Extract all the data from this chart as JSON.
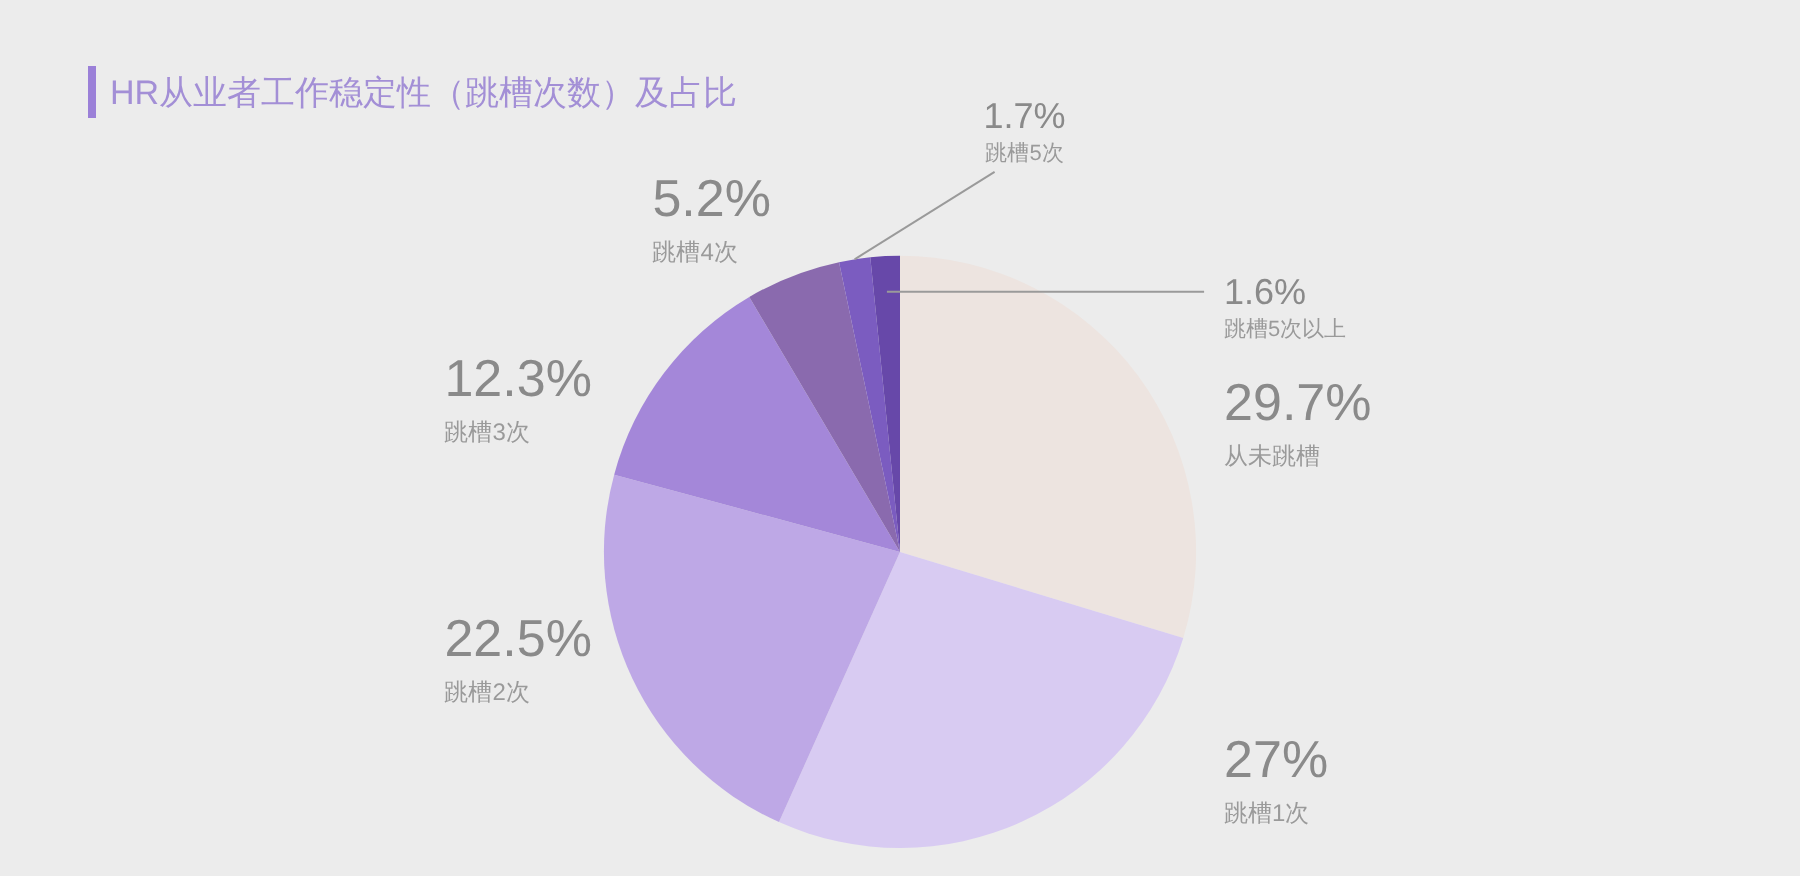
{
  "chart_data": {
    "type": "pie",
    "title": "HR从业者工作稳定性（跳槽次数）及占比",
    "categories": [
      "从未跳槽",
      "跳槽1次",
      "跳槽2次",
      "跳槽3次",
      "跳槽4次",
      "跳槽5次",
      "跳槽5次以上"
    ],
    "values": [
      29.7,
      27,
      22.5,
      12.3,
      5.2,
      1.7,
      1.6
    ],
    "value_labels": [
      "29.7%",
      "27%",
      "22.5%",
      "12.3%",
      "5.2%",
      "1.7%",
      "1.6%"
    ],
    "colors": [
      "#ede4e0",
      "#d8cbf2",
      "#bea8e6",
      "#a487d9",
      "#8a6aae",
      "#7b5cc0",
      "#6748a9"
    ]
  }
}
